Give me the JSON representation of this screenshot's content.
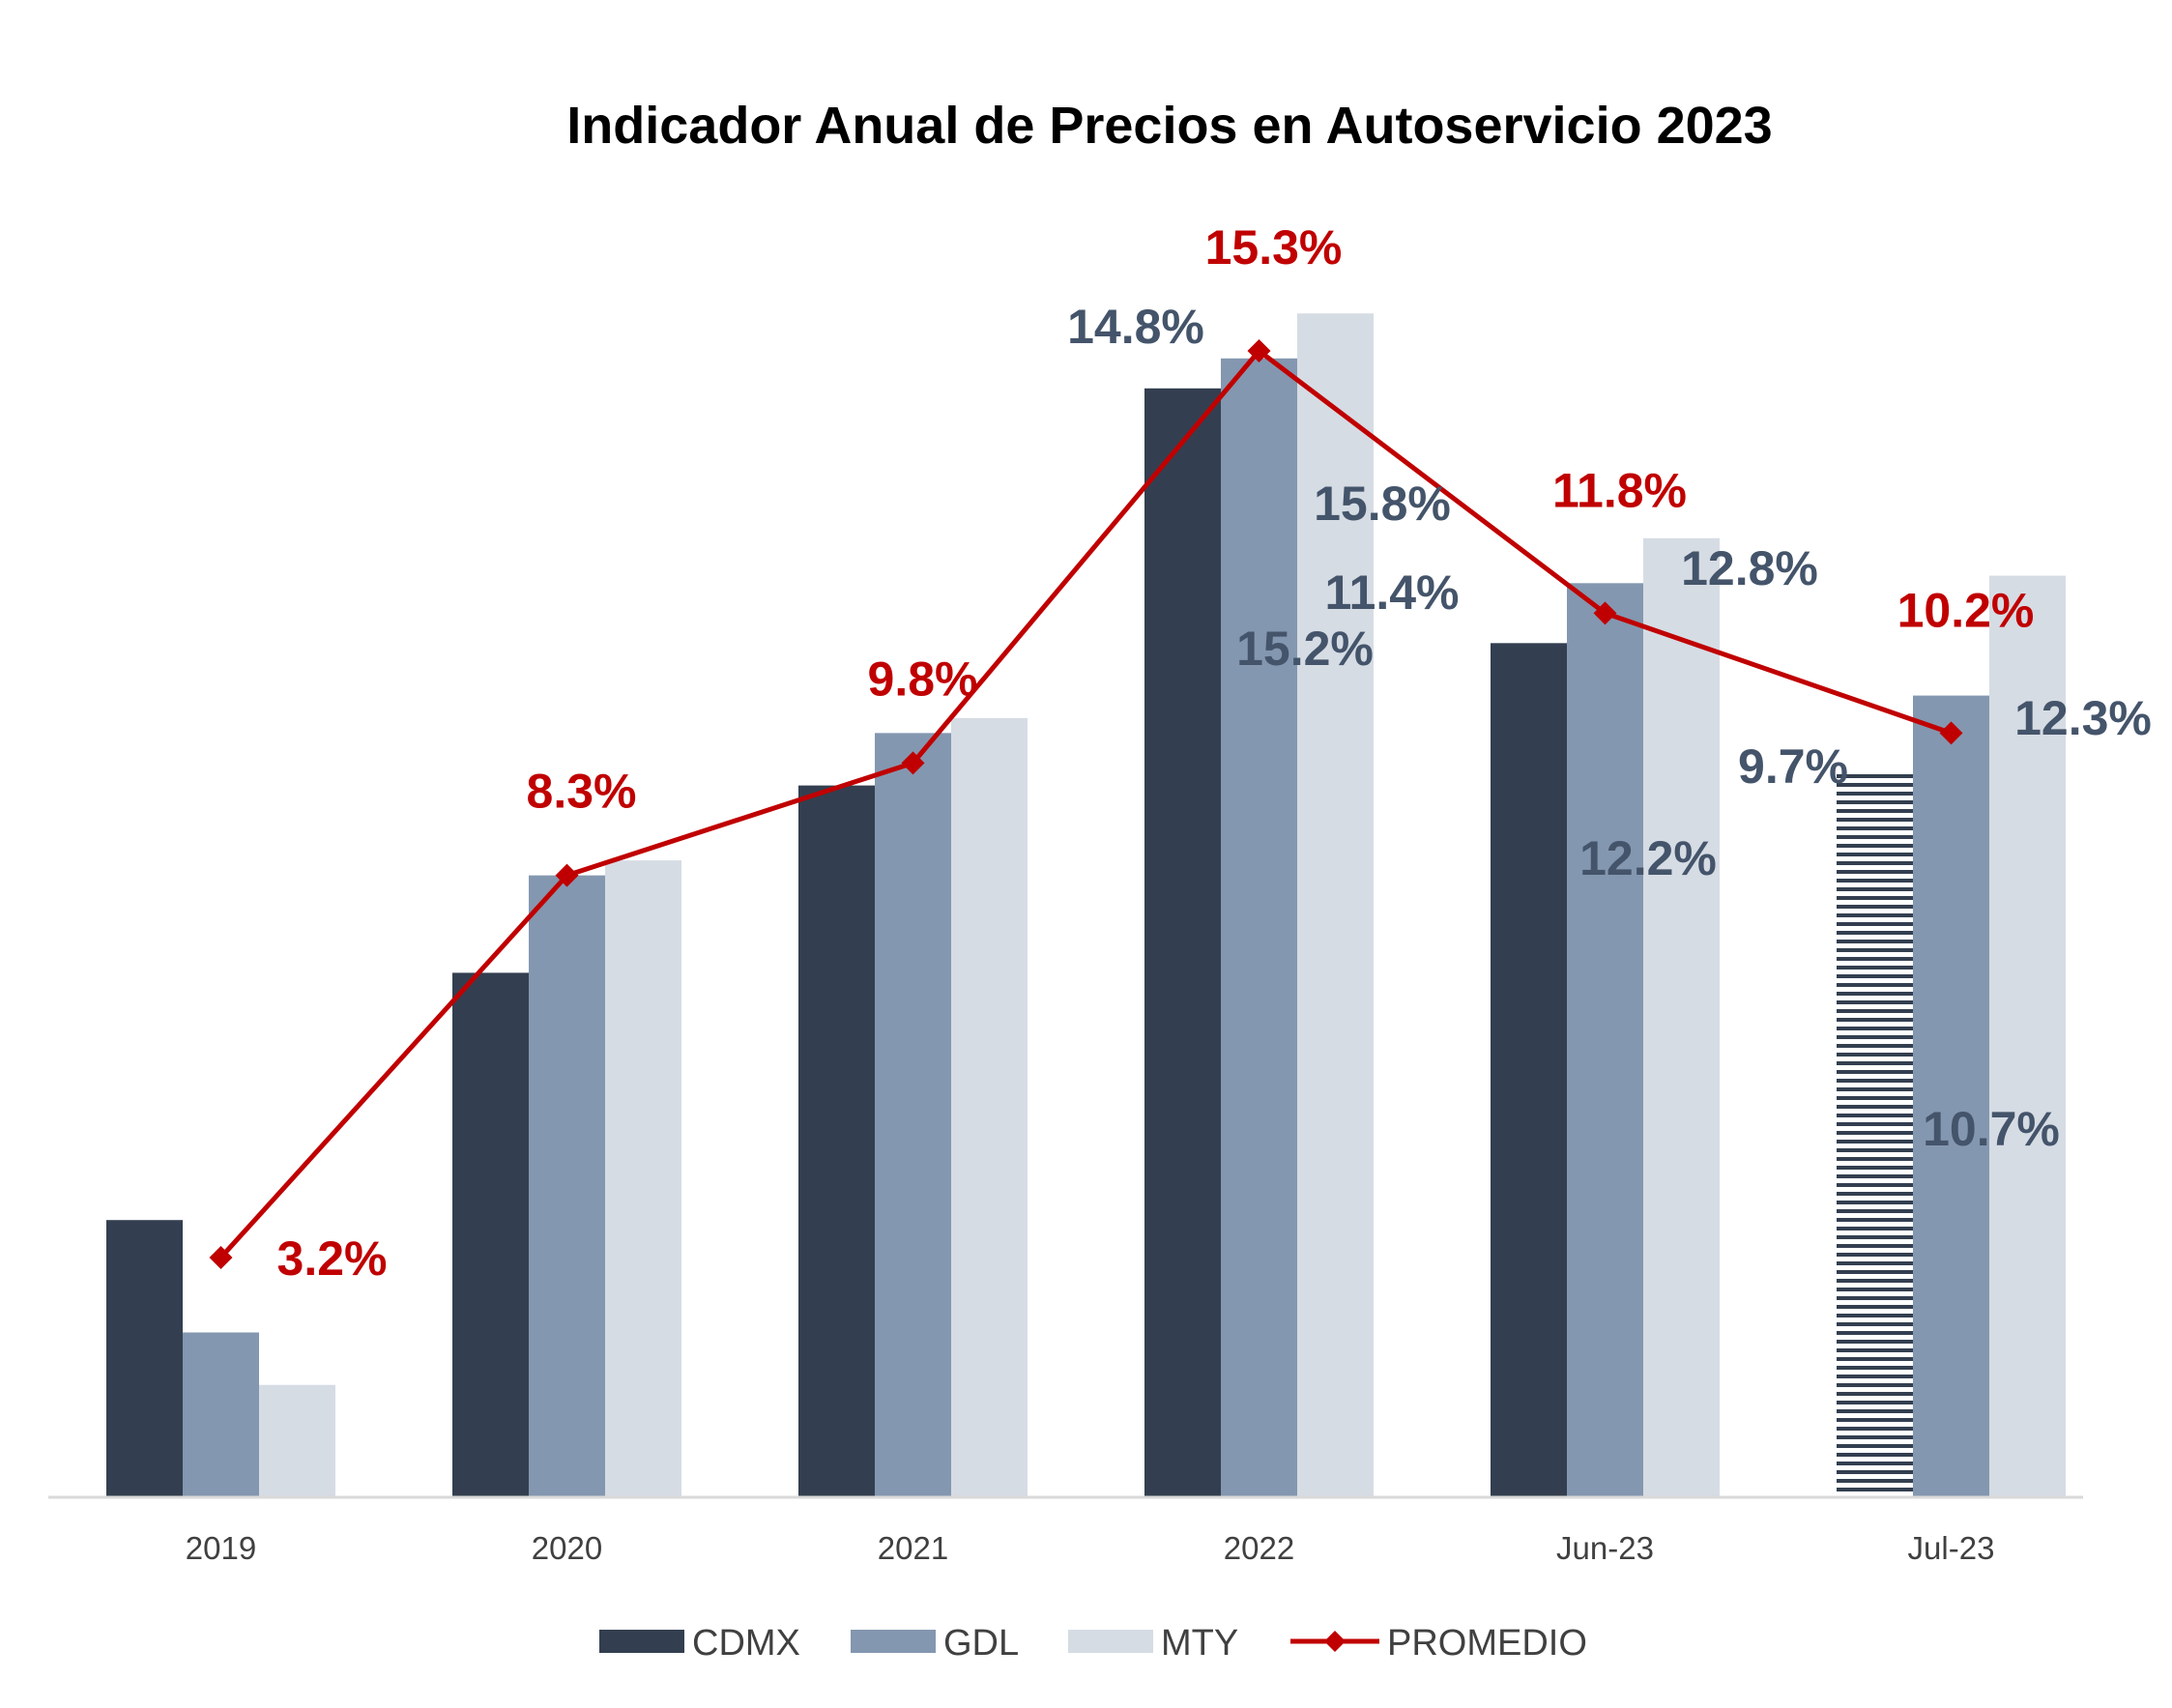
{
  "chart_data": {
    "type": "bar",
    "title": "Indicador Anual de Precios en Autoservicio 2023",
    "categories": [
      "2019",
      "2020",
      "2021",
      "2022",
      "Jun-23",
      "Jul-23"
    ],
    "series": [
      {
        "name": "CDMX",
        "type": "bar",
        "color": "#333f50",
        "values": [
          3.7,
          7.0,
          9.5,
          14.8,
          11.4,
          9.7
        ],
        "labels": [
          "",
          "",
          "",
          "14.8%",
          "11.4%",
          "9.7%"
        ]
      },
      {
        "name": "GDL",
        "type": "bar",
        "color": "#8497b0",
        "values": [
          2.2,
          8.3,
          10.2,
          15.2,
          12.2,
          10.7
        ],
        "labels": [
          "",
          "",
          "",
          "15.2%",
          "12.2%",
          "10.7%"
        ]
      },
      {
        "name": "MTY",
        "type": "bar",
        "color": "#d6dce4",
        "values": [
          1.5,
          8.5,
          10.4,
          15.8,
          12.8,
          12.3
        ],
        "labels": [
          "",
          "",
          "",
          "15.8%",
          "12.8%",
          "12.3%"
        ]
      },
      {
        "name": "PROMEDIO",
        "type": "line",
        "color": "#c00000",
        "values": [
          3.2,
          8.3,
          9.8,
          15.3,
          11.8,
          10.2
        ],
        "labels": [
          "3.2%",
          "8.3%",
          "9.8%",
          "15.3%",
          "11.8%",
          "10.2%"
        ]
      }
    ],
    "hatched_bar": {
      "series": "CDMX",
      "category": "Jul-23"
    },
    "ylim": [
      0,
      16.5
    ],
    "grid": false,
    "legend": "bottom"
  }
}
